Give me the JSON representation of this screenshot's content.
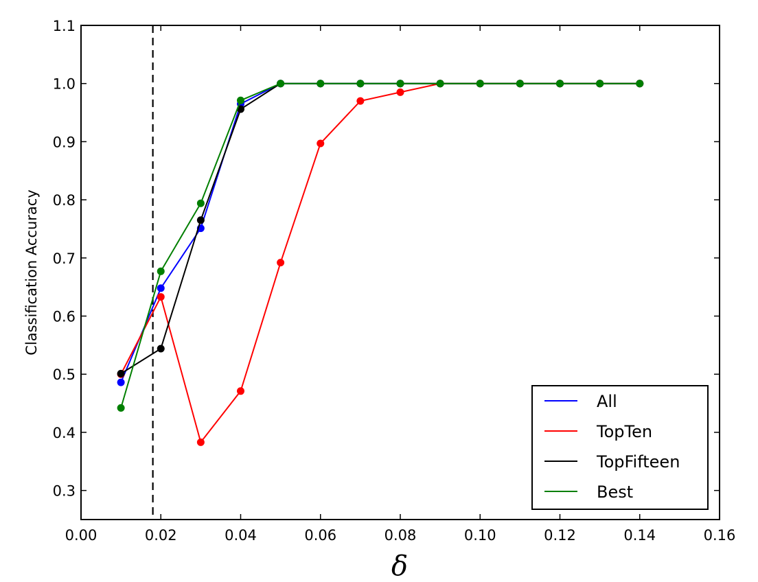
{
  "chart_data": {
    "type": "line",
    "title": "",
    "xlabel": "δ",
    "ylabel": "Classification Accuracy",
    "xlim": [
      0.0,
      0.16
    ],
    "ylim": [
      0.25,
      1.1
    ],
    "xticks": [
      0.0,
      0.02,
      0.04,
      0.06,
      0.08,
      0.1,
      0.12,
      0.14,
      0.16
    ],
    "xtick_labels": [
      "0.00",
      "0.02",
      "0.04",
      "0.06",
      "0.08",
      "0.10",
      "0.12",
      "0.14",
      "0.16"
    ],
    "yticks": [
      0.3,
      0.4,
      0.5,
      0.6,
      0.7,
      0.8,
      0.9,
      1.0,
      1.1
    ],
    "ytick_labels": [
      "0.3",
      "0.4",
      "0.5",
      "0.6",
      "0.7",
      "0.8",
      "0.9",
      "1.0",
      "1.1"
    ],
    "grid": false,
    "legend_position": "bottom-right",
    "reference_line": {
      "x": 0.018,
      "style": "dashed",
      "color": "#000000"
    },
    "x": [
      0.01,
      0.02,
      0.03,
      0.04,
      0.05,
      0.06,
      0.07,
      0.08,
      0.09,
      0.1,
      0.11,
      0.12,
      0.13,
      0.14
    ],
    "series": [
      {
        "name": "All",
        "color": "#0000ff",
        "values": [
          0.486,
          0.648,
          0.751,
          0.965,
          1.0,
          1.0,
          1.0,
          1.0,
          1.0,
          1.0,
          1.0,
          1.0,
          1.0,
          1.0
        ]
      },
      {
        "name": "TopTen",
        "color": "#ff0000",
        "values": [
          0.5,
          0.633,
          0.383,
          0.471,
          0.692,
          0.897,
          0.97,
          0.985,
          1.0,
          1.0,
          1.0,
          1.0,
          1.0,
          1.0
        ]
      },
      {
        "name": "TopFifteen",
        "color": "#000000",
        "values": [
          0.501,
          0.544,
          0.765,
          0.956,
          1.0,
          1.0,
          1.0,
          1.0,
          1.0,
          1.0,
          1.0,
          1.0,
          1.0,
          1.0
        ]
      },
      {
        "name": "Best",
        "color": "#007f00",
        "values": [
          0.442,
          0.677,
          0.794,
          0.971,
          1.0,
          1.0,
          1.0,
          1.0,
          1.0,
          1.0,
          1.0,
          1.0,
          1.0,
          1.0
        ]
      }
    ]
  }
}
